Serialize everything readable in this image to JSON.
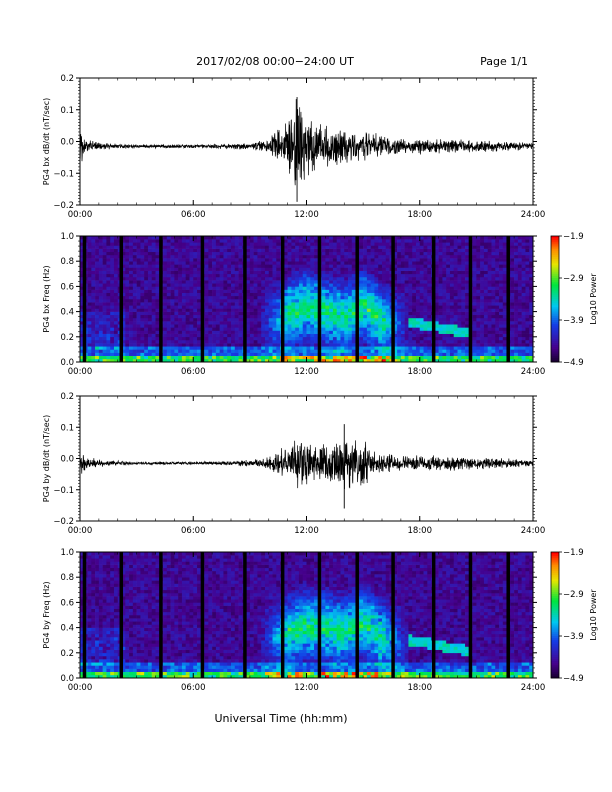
{
  "header": {
    "title": "2017/02/08  00:00−24:00 UT",
    "page": "Page 1/1"
  },
  "xlabel": "Universal Time (hh:mm)",
  "colorbar": {
    "label": "Log10 Power",
    "ticks": [
      "−1.9",
      "−2.9",
      "−3.9",
      "−4.9"
    ],
    "range": [
      -4.9,
      -1.9
    ]
  },
  "chart_data": [
    {
      "type": "line",
      "title": "",
      "ylabel": "PG4 bx dB/dt (nT/sec)",
      "xlabel": "",
      "xlim": [
        "00:00",
        "24:00"
      ],
      "ylim": [
        -0.2,
        0.2
      ],
      "yticks": [
        "0.2",
        "0.1",
        "0.0",
        "−0.1",
        "−0.2"
      ],
      "xticks": [
        "00:00",
        "06:00",
        "12:00",
        "18:00",
        "24:00"
      ],
      "envelope": {
        "hours": [
          0,
          0.3,
          1,
          3,
          6,
          8,
          9,
          10,
          10.5,
          11,
          11.5,
          12,
          12.5,
          13,
          14,
          15,
          16,
          17,
          18,
          20,
          22,
          24
        ],
        "amplitude": [
          0.06,
          0.02,
          0.01,
          0.005,
          0.005,
          0.008,
          0.01,
          0.02,
          0.05,
          0.07,
          0.14,
          0.1,
          0.07,
          0.06,
          0.05,
          0.04,
          0.03,
          0.02,
          0.02,
          0.02,
          0.015,
          0.01
        ]
      },
      "peaks": {
        "max": 0.14,
        "min": -0.19,
        "at": "11:30"
      }
    },
    {
      "type": "heatmap",
      "title": "",
      "ylabel": "PG4 bx Freq (Hz)",
      "xlabel": "",
      "xlim": [
        "00:00",
        "24:00"
      ],
      "ylim": [
        0.0,
        1.0
      ],
      "yticks": [
        "1.0",
        "0.8",
        "0.6",
        "0.4",
        "0.2",
        "0.0"
      ],
      "xticks": [
        "00:00",
        "06:00",
        "12:00",
        "18:00",
        "24:00"
      ],
      "color_range": [
        -4.9,
        -1.9
      ],
      "gap_hours": [
        0.25,
        2.2,
        4.3,
        6.5,
        8.75,
        10.75,
        12.7,
        14.7,
        16.6,
        18.75,
        20.7,
        22.7
      ],
      "noise_band": {
        "hours": [
          10,
          12,
          13,
          14,
          15,
          16,
          17
        ],
        "center_hz": [
          0.3,
          0.45,
          0.4,
          0.35,
          0.45,
          0.32,
          0.28
        ]
      },
      "tones": [
        {
          "from_hours": 17.5,
          "to_hours": 20.5,
          "from_hz": 0.32,
          "to_hz": 0.23
        }
      ]
    },
    {
      "type": "line",
      "title": "",
      "ylabel": "PG4 by dB/dt (nT/sec)",
      "xlabel": "",
      "xlim": [
        "00:00",
        "24:00"
      ],
      "ylim": [
        -0.2,
        0.2
      ],
      "yticks": [
        "0.2",
        "0.1",
        "0.0",
        "−0.1",
        "−0.2"
      ],
      "xticks": [
        "00:00",
        "06:00",
        "12:00",
        "18:00",
        "24:00"
      ],
      "envelope": {
        "hours": [
          0,
          0.3,
          1,
          3,
          6,
          8,
          9,
          10,
          10.5,
          11,
          11.5,
          12,
          12.5,
          13,
          14,
          15,
          16,
          17,
          18,
          20,
          22,
          24
        ],
        "amplitude": [
          0.05,
          0.02,
          0.01,
          0.004,
          0.004,
          0.006,
          0.01,
          0.02,
          0.035,
          0.05,
          0.07,
          0.06,
          0.05,
          0.06,
          0.07,
          0.06,
          0.03,
          0.02,
          0.02,
          0.02,
          0.015,
          0.01
        ]
      },
      "peaks": {
        "max": 0.11,
        "min": -0.16,
        "at": "14:00"
      }
    },
    {
      "type": "heatmap",
      "title": "",
      "ylabel": "PG4 by Freq (Hz)",
      "xlabel": "",
      "xlim": [
        "00:00",
        "24:00"
      ],
      "ylim": [
        0.0,
        1.0
      ],
      "yticks": [
        "1.0",
        "0.8",
        "0.6",
        "0.4",
        "0.2",
        "0.0"
      ],
      "xticks": [
        "00:00",
        "06:00",
        "12:00",
        "18:00",
        "24:00"
      ],
      "color_range": [
        -4.9,
        -1.9
      ],
      "gap_hours": [
        0.25,
        2.2,
        4.3,
        6.5,
        8.75,
        10.75,
        12.7,
        14.7,
        16.6,
        18.75,
        20.7,
        22.7
      ],
      "noise_band": {
        "hours": [
          10,
          12,
          13,
          14,
          15,
          16,
          17
        ],
        "center_hz": [
          0.3,
          0.42,
          0.4,
          0.36,
          0.45,
          0.32,
          0.28
        ]
      },
      "tones": [
        {
          "from_hours": 17.5,
          "to_hours": 20.5,
          "from_hz": 0.3,
          "to_hz": 0.22
        }
      ]
    }
  ]
}
